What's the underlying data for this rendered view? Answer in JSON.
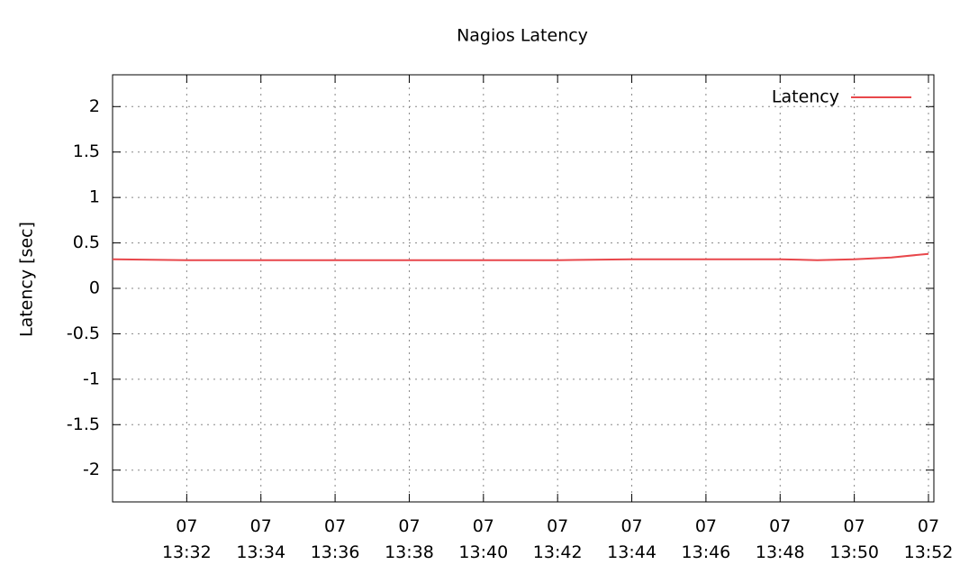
{
  "chart_data": {
    "type": "line",
    "title": "Nagios Latency",
    "y_label": "Latency [sec]",
    "x": [
      "07 13:30",
      "07 13:32",
      "07 13:34",
      "07 13:36",
      "07 13:38",
      "07 13:40",
      "07 13:42",
      "07 13:44",
      "07 13:46",
      "07 13:48",
      "07 13:49",
      "07 13:50",
      "07 13:51",
      "07 13:52"
    ],
    "series": [
      {
        "name": "Latency",
        "color": "#e8474b",
        "values": [
          0.32,
          0.31,
          0.31,
          0.31,
          0.31,
          0.31,
          0.31,
          0.32,
          0.32,
          0.32,
          0.31,
          0.32,
          0.34,
          0.38
        ]
      }
    ],
    "xlim": [
      "07 13:30",
      "07 13:52"
    ],
    "xticks": [
      "07 13:32",
      "07 13:34",
      "07 13:36",
      "07 13:38",
      "07 13:40",
      "07 13:42",
      "07 13:44",
      "07 13:46",
      "07 13:48",
      "07 13:50",
      "07 13:52"
    ],
    "ylim": [
      -2.35,
      2.35
    ],
    "yticks": [
      -2,
      -1.5,
      -1,
      -0.5,
      0,
      0.5,
      1,
      1.5,
      2
    ],
    "grid": true,
    "legend": "upper-right"
  }
}
